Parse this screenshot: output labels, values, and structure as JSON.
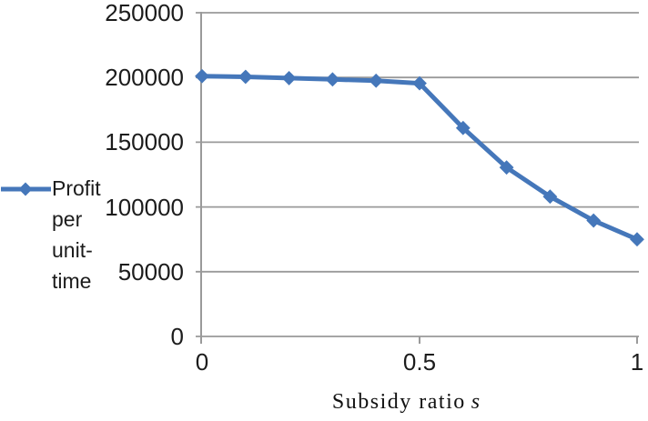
{
  "legend": {
    "label": "Profit per unit-time",
    "position": "left",
    "marker": "diamond-line"
  },
  "axes": {
    "x_title_text": "Subsidy ratio",
    "x_title_var": "s",
    "y_tick_labels": [
      "0",
      "50000",
      "100000",
      "150000",
      "200000",
      "250000"
    ],
    "x_tick_labels": [
      "0",
      "0.5",
      "1"
    ]
  },
  "colors": {
    "series_blue": "#4577BA",
    "gridline": "#9a9a9a",
    "axis": "#9a9a9a",
    "text": "#1c1c1c"
  },
  "chart_data": {
    "type": "line",
    "title": "",
    "xlabel": "Subsidy ratio s",
    "ylabel": "",
    "x": [
      0,
      0.1,
      0.2,
      0.3,
      0.4,
      0.5,
      0.6,
      0.7,
      0.8,
      0.9,
      1.0
    ],
    "series": [
      {
        "name": "Profit per unit-time",
        "color": "#4577BA",
        "marker": "diamond",
        "values": [
          201000,
          200500,
          199500,
          198500,
          197500,
          195500,
          161000,
          130500,
          108000,
          89500,
          75000
        ]
      }
    ],
    "xlim": [
      0,
      1
    ],
    "ylim": [
      0,
      250000
    ],
    "x_ticks": [
      0,
      0.5,
      1
    ],
    "y_ticks": [
      0,
      50000,
      100000,
      150000,
      200000,
      250000
    ],
    "grid": "horizontal-only",
    "legend_position": "left"
  }
}
